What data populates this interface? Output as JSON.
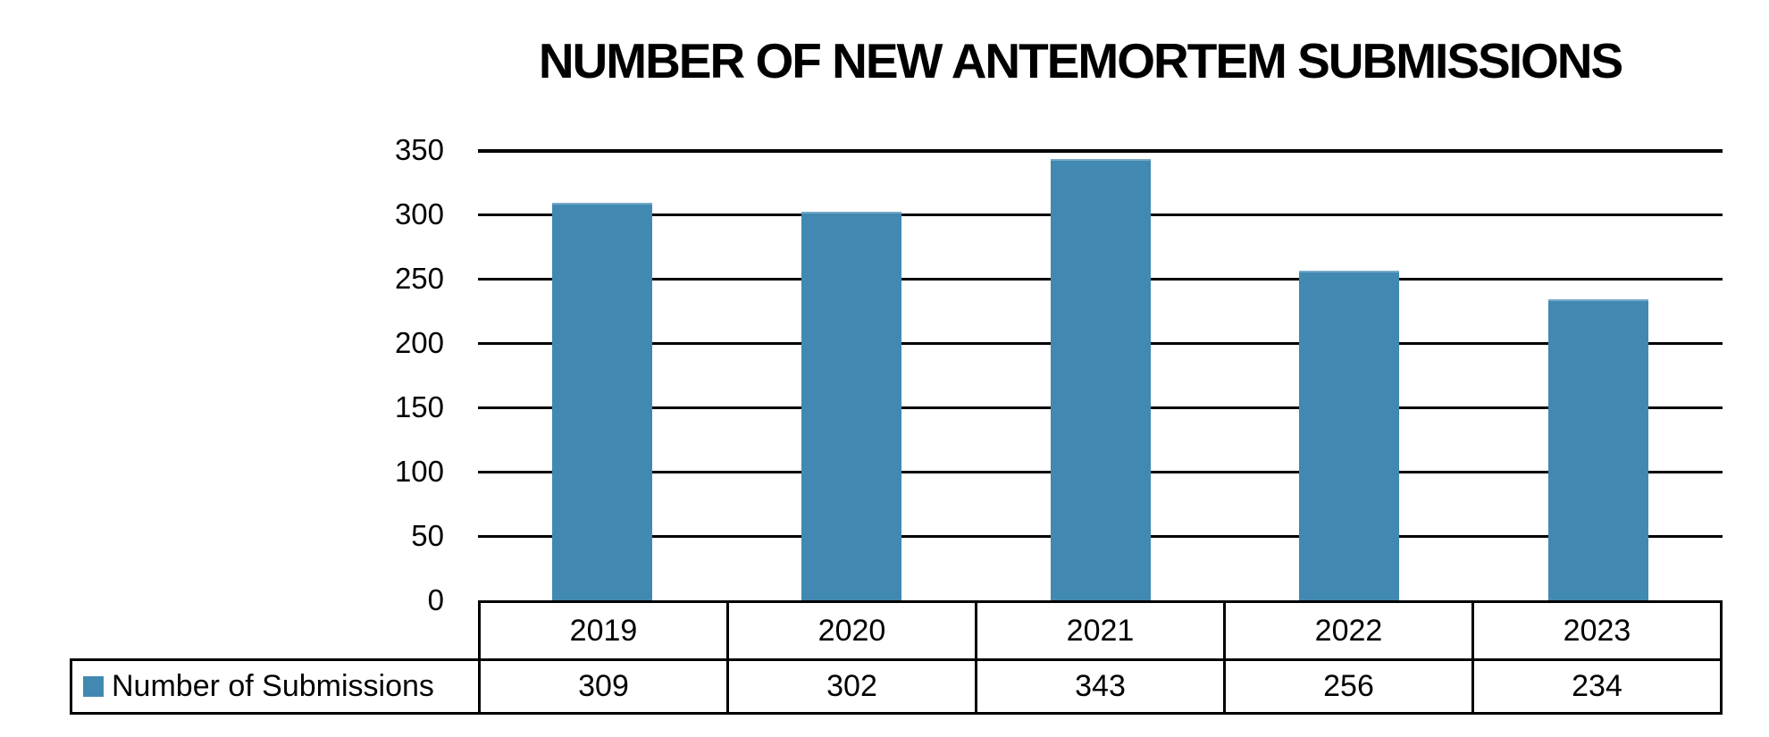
{
  "chart_data": {
    "type": "bar",
    "title": "NUMBER OF NEW ANTEMORTEM SUBMISSIONS",
    "categories": [
      "2019",
      "2020",
      "2021",
      "2022",
      "2023"
    ],
    "series": [
      {
        "name": "Number of Submissions",
        "values": [
          309,
          302,
          343,
          256,
          234
        ]
      }
    ],
    "xlabel": "",
    "ylabel": "",
    "ylim": [
      0,
      350
    ],
    "yticks": [
      0,
      50,
      100,
      150,
      200,
      250,
      300,
      350
    ],
    "grid": "horizontal",
    "legend_position": "bottom-left",
    "data_table_shown": true,
    "colors": {
      "bar": "#4289B2",
      "gridline": "#000000",
      "table_border": "#000000",
      "text": "#000000",
      "background": "#FFFFFF"
    }
  }
}
